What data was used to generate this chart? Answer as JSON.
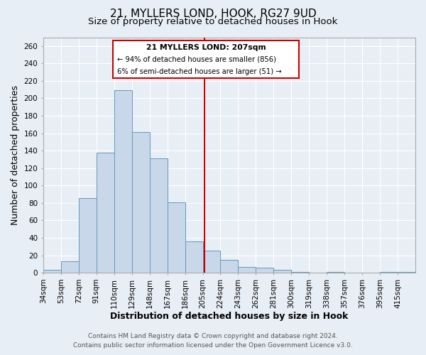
{
  "title": "21, MYLLERS LOND, HOOK, RG27 9UD",
  "subtitle": "Size of property relative to detached houses in Hook",
  "xlabel": "Distribution of detached houses by size in Hook",
  "ylabel": "Number of detached properties",
  "bin_edges": [
    34,
    53,
    72,
    91,
    110,
    129,
    148,
    167,
    186,
    205,
    224,
    243,
    262,
    281,
    300,
    319,
    338,
    357,
    376,
    395,
    414,
    433
  ],
  "bar_heights": [
    3,
    13,
    86,
    138,
    209,
    161,
    131,
    81,
    36,
    25,
    15,
    7,
    6,
    3,
    1,
    0,
    1,
    0,
    0,
    1,
    1
  ],
  "bar_color": "#c8d8ea",
  "bar_edgecolor": "#6699bb",
  "property_value": 207,
  "vline_color": "#cc0000",
  "annotation_box_color": "#cc0000",
  "annotation_title": "21 MYLLERS LOND: 207sqm",
  "annotation_line1": "← 94% of detached houses are smaller (856)",
  "annotation_line2": "6% of semi-detached houses are larger (51) →",
  "ylim": [
    0,
    270
  ],
  "xtick_labels": [
    "34sqm",
    "53sqm",
    "72sqm",
    "91sqm",
    "110sqm",
    "129sqm",
    "148sqm",
    "167sqm",
    "186sqm",
    "205sqm",
    "224sqm",
    "243sqm",
    "262sqm",
    "281sqm",
    "300sqm",
    "319sqm",
    "338sqm",
    "357sqm",
    "376sqm",
    "395sqm",
    "415sqm"
  ],
  "footer_line1": "Contains HM Land Registry data © Crown copyright and database right 2024.",
  "footer_line2": "Contains public sector information licensed under the Open Government Licence v3.0.",
  "bg_color": "#e8eef5",
  "grid_color": "#ffffff",
  "title_fontsize": 11,
  "subtitle_fontsize": 9.5,
  "axis_label_fontsize": 9,
  "tick_fontsize": 7.5,
  "footer_fontsize": 6.5
}
